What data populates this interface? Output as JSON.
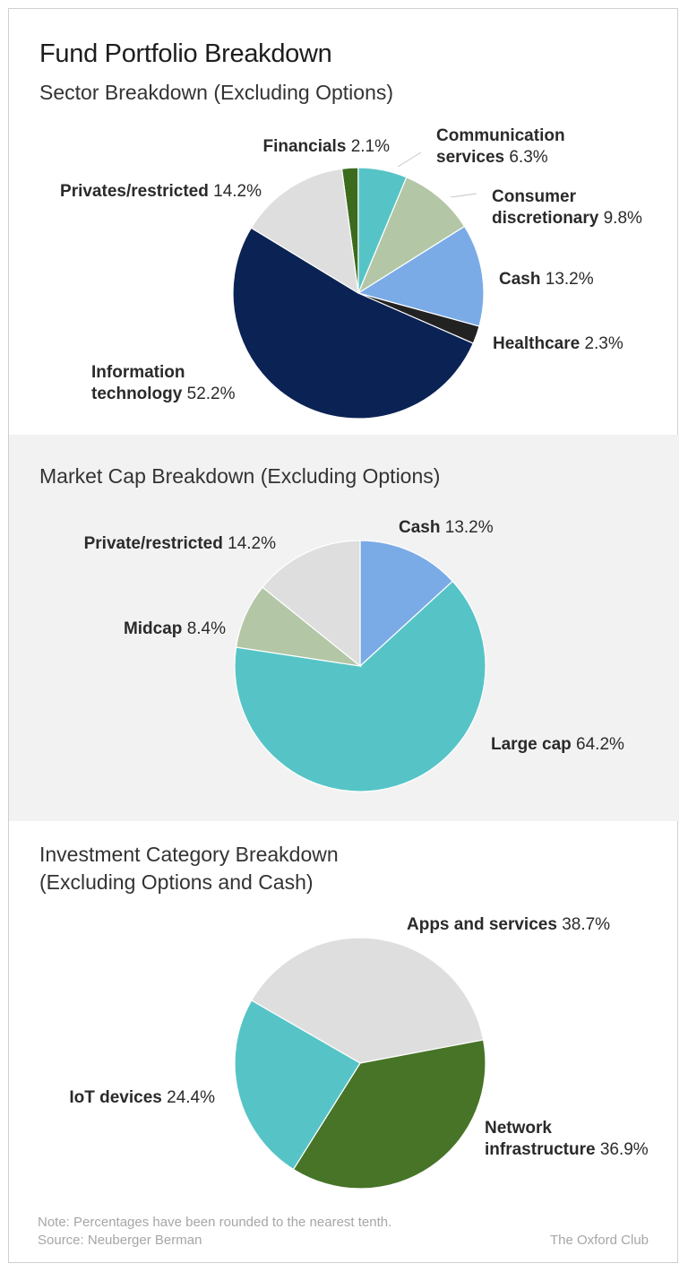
{
  "page": {
    "title": "Fund Portfolio Breakdown",
    "note": "Note: Percentages have been rounded to the nearest tenth.",
    "source": "Source: Neuberger Berman",
    "brand": "The Oxford Club"
  },
  "chart_data": [
    {
      "type": "pie",
      "title": "Sector Breakdown (Excluding Options)",
      "slices": [
        {
          "name": "Financials",
          "label_lines": [
            "Financials"
          ],
          "value": 2.1,
          "value_label": "2.1%",
          "color": "#3d6b1e"
        },
        {
          "name": "Communication services",
          "label_lines": [
            "Communication",
            "services"
          ],
          "value": 6.3,
          "value_label": "6.3%",
          "color": "#56c4c6"
        },
        {
          "name": "Consumer discretionary",
          "label_lines": [
            "Consumer",
            "discretionary"
          ],
          "value": 9.8,
          "value_label": "9.8%",
          "color": "#b3c6a6"
        },
        {
          "name": "Cash",
          "label_lines": [
            "Cash"
          ],
          "value": 13.2,
          "value_label": "13.2%",
          "color": "#7aabe7"
        },
        {
          "name": "Healthcare",
          "label_lines": [
            "Healthcare"
          ],
          "value": 2.3,
          "value_label": "2.3%",
          "color": "#222222"
        },
        {
          "name": "Information technology",
          "label_lines": [
            "Information",
            "technology"
          ],
          "value": 52.2,
          "value_label": "52.2%",
          "color": "#0b2254"
        },
        {
          "name": "Privates/restricted",
          "label_lines": [
            "Privates/restricted"
          ],
          "value": 14.2,
          "value_label": "14.2%",
          "color": "#dedede"
        }
      ]
    },
    {
      "type": "pie",
      "title": "Market Cap Breakdown (Excluding Options)",
      "slices": [
        {
          "name": "Cash",
          "label_lines": [
            "Cash"
          ],
          "value": 13.2,
          "value_label": "13.2%",
          "color": "#7aabe7"
        },
        {
          "name": "Large cap",
          "label_lines": [
            "Large cap"
          ],
          "value": 64.2,
          "value_label": "64.2%",
          "color": "#56c4c6"
        },
        {
          "name": "Midcap",
          "label_lines": [
            "Midcap"
          ],
          "value": 8.4,
          "value_label": "8.4%",
          "color": "#b3c6a6"
        },
        {
          "name": "Private/restricted",
          "label_lines": [
            "Private/restricted"
          ],
          "value": 14.2,
          "value_label": "14.2%",
          "color": "#dedede"
        }
      ]
    },
    {
      "type": "pie",
      "title_lines": [
        "Investment Category Breakdown",
        "(Excluding Options and Cash)"
      ],
      "slices": [
        {
          "name": "Apps and services",
          "label_lines": [
            "Apps and services"
          ],
          "value": 38.7,
          "value_label": "38.7%",
          "color": "#dedede"
        },
        {
          "name": "Network infrastructure",
          "label_lines": [
            "Network",
            "infrastructure"
          ],
          "value": 36.9,
          "value_label": "36.9%",
          "color": "#477427"
        },
        {
          "name": "IoT devices",
          "label_lines": [
            "IoT devices"
          ],
          "value": 24.4,
          "value_label": "24.4%",
          "color": "#56c4c6"
        }
      ]
    }
  ]
}
